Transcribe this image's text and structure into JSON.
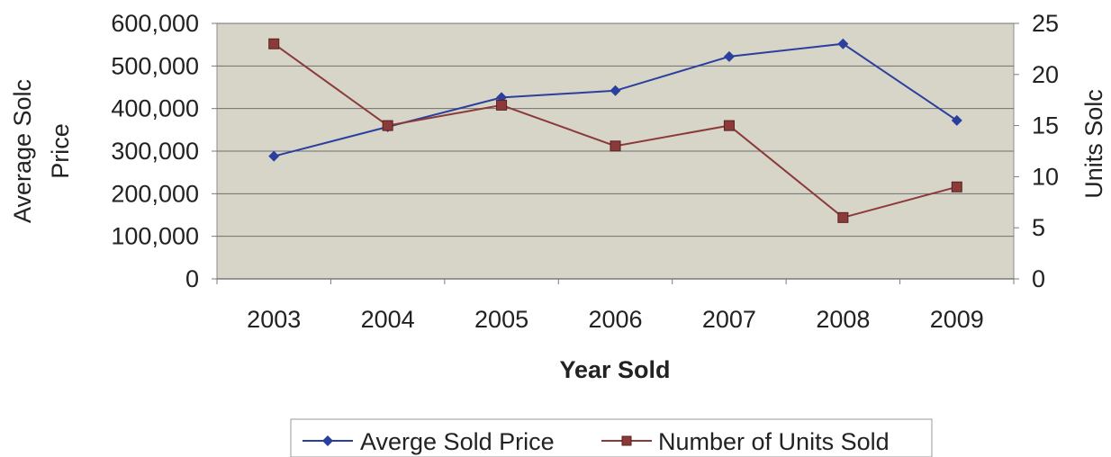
{
  "chart_data": {
    "type": "line",
    "title": "",
    "xlabel": "Year Sold",
    "ylabel_left_lines": [
      "Average Solc",
      "Price"
    ],
    "ylabel_right": "Units Solc",
    "categories": [
      "2003",
      "2004",
      "2005",
      "2006",
      "2007",
      "2008",
      "2009"
    ],
    "y_left": {
      "lim": [
        0,
        600000
      ],
      "ticks": [
        0,
        100000,
        200000,
        300000,
        400000,
        500000,
        600000
      ],
      "tick_labels": [
        "0",
        "100,000",
        "200,000",
        "300,000",
        "400,000",
        "500,000",
        "600,000"
      ]
    },
    "y_right": {
      "lim": [
        0,
        25
      ],
      "ticks": [
        0,
        5,
        10,
        15,
        20,
        25
      ],
      "tick_labels": [
        "0",
        "5",
        "10",
        "15",
        "20",
        "25"
      ]
    },
    "series": [
      {
        "name": "Averge Sold Price",
        "axis": "left",
        "color": "#2b3f9e",
        "marker": "diamond",
        "values": [
          288000,
          357000,
          426000,
          442000,
          522000,
          552000,
          372000
        ]
      },
      {
        "name": "Number of Units Sold",
        "axis": "right",
        "color": "#8b3a3a",
        "marker": "square",
        "values": [
          23,
          15,
          17,
          13,
          15,
          6,
          9
        ]
      }
    ],
    "grid": true,
    "plot_background": "#d7d4c8",
    "legend_position": "bottom"
  }
}
